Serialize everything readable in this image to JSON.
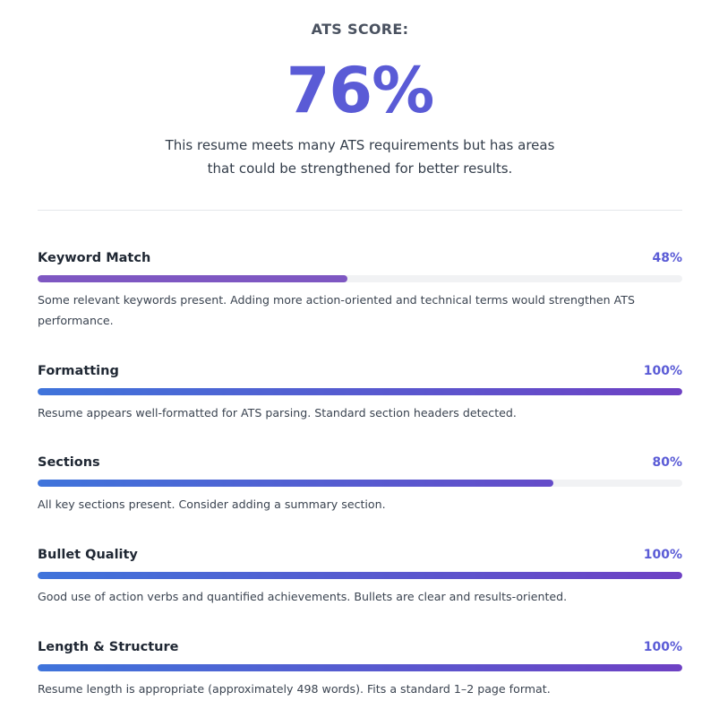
{
  "header": {
    "label": "ATS SCORE:",
    "score": "76%",
    "score_value": 76,
    "description": "This resume meets many ATS requirements but has areas that could be strengthened for better results."
  },
  "colors": {
    "accent": "#5a5bd6",
    "gradient_start": "#3f74db",
    "gradient_end": "#6e41c4",
    "low_score_fill": "#7e57c2",
    "track": "#f1f2f4"
  },
  "metrics": [
    {
      "name": "Keyword Match",
      "percent_label": "48%",
      "value": 48,
      "style": "solid",
      "description": "Some relevant keywords present. Adding more action-oriented and technical terms would strengthen ATS performance."
    },
    {
      "name": "Formatting",
      "percent_label": "100%",
      "value": 100,
      "style": "gradient",
      "description": "Resume appears well-formatted for ATS parsing. Standard section headers detected."
    },
    {
      "name": "Sections",
      "percent_label": "80%",
      "value": 80,
      "style": "gradient",
      "description": "All key sections present. Consider adding a summary section."
    },
    {
      "name": "Bullet Quality",
      "percent_label": "100%",
      "value": 100,
      "style": "gradient",
      "description": "Good use of action verbs and quantified achievements. Bullets are clear and results-oriented."
    },
    {
      "name": "Length & Structure",
      "percent_label": "100%",
      "value": 100,
      "style": "gradient",
      "description": "Resume length is appropriate (approximately 498 words). Fits a standard 1–2 page format."
    }
  ]
}
